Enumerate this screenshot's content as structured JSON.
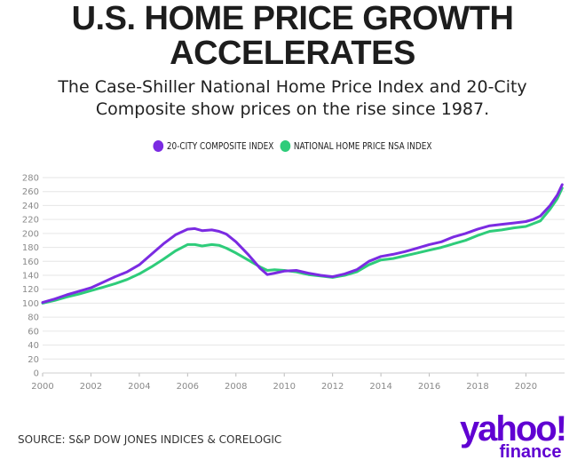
{
  "title_lines": [
    "U.S. HOME PRICE GROWTH",
    "ACCELERATES"
  ],
  "subtitle_lines": [
    "The Case-Shiller National Home Price Index and 20-City",
    "Composite show prices on the rise since 1987."
  ],
  "source": "SOURCE: S&P DOW JONES INDICES & CORELOGIC",
  "logo": {
    "main": "yahoo!",
    "sub": "finance"
  },
  "colors": {
    "composite20": "#7b2be2",
    "national": "#2ecc7a",
    "logo": "#6001d2",
    "grid": "#e6e6e6"
  },
  "chart_data": {
    "type": "line",
    "title": "U.S. HOME PRICE GROWTH ACCELERATES",
    "xlabel": "",
    "ylabel": "",
    "xlim": [
      2000,
      2021.6
    ],
    "ylim": [
      0,
      280
    ],
    "x_ticks": [
      2000,
      2002,
      2004,
      2006,
      2008,
      2010,
      2012,
      2014,
      2016,
      2018,
      2020
    ],
    "y_ticks": [
      0,
      20,
      40,
      60,
      80,
      100,
      120,
      140,
      160,
      180,
      200,
      220,
      240,
      260,
      280
    ],
    "grid": true,
    "legend_position": "top-center",
    "series": [
      {
        "name": "20-CITY COMPOSITE INDEX",
        "color": "#7b2be2",
        "x": [
          2000,
          2000.5,
          2001,
          2001.5,
          2002,
          2002.5,
          2003,
          2003.5,
          2004,
          2004.5,
          2005,
          2005.5,
          2006,
          2006.3,
          2006.6,
          2007,
          2007.3,
          2007.6,
          2008,
          2008.5,
          2009,
          2009.3,
          2009.6,
          2010,
          2010.5,
          2011,
          2011.5,
          2012,
          2012.5,
          2013,
          2013.5,
          2014,
          2014.5,
          2015,
          2015.5,
          2016,
          2016.5,
          2017,
          2017.5,
          2018,
          2018.5,
          2019,
          2019.5,
          2020,
          2020.3,
          2020.6,
          2021,
          2021.3,
          2021.5
        ],
        "values": [
          101,
          106,
          112,
          117,
          122,
          130,
          138,
          145,
          155,
          170,
          185,
          198,
          206,
          207,
          204,
          205,
          203,
          199,
          188,
          170,
          150,
          141,
          143,
          146,
          147,
          143,
          140,
          138,
          142,
          148,
          160,
          167,
          170,
          174,
          179,
          184,
          188,
          195,
          200,
          206,
          211,
          213,
          215,
          217,
          220,
          225,
          240,
          255,
          270
        ]
      },
      {
        "name": "NATIONAL HOME PRICE NSA INDEX",
        "color": "#2ecc7a",
        "x": [
          2000,
          2000.5,
          2001,
          2001.5,
          2002,
          2002.5,
          2003,
          2003.5,
          2004,
          2004.5,
          2005,
          2005.5,
          2006,
          2006.3,
          2006.6,
          2007,
          2007.3,
          2007.6,
          2008,
          2008.5,
          2009,
          2009.3,
          2009.6,
          2010,
          2010.5,
          2011,
          2011.5,
          2012,
          2012.5,
          2013,
          2013.5,
          2014,
          2014.5,
          2015,
          2015.5,
          2016,
          2016.5,
          2017,
          2017.5,
          2018,
          2018.5,
          2019,
          2019.5,
          2020,
          2020.3,
          2020.6,
          2021,
          2021.3,
          2021.5
        ],
        "values": [
          100,
          104,
          109,
          113,
          118,
          123,
          128,
          134,
          142,
          152,
          163,
          175,
          184,
          184,
          182,
          184,
          183,
          179,
          172,
          162,
          152,
          147,
          148,
          147,
          145,
          141,
          139,
          137,
          140,
          145,
          155,
          162,
          164,
          168,
          172,
          176,
          180,
          185,
          190,
          197,
          203,
          205,
          208,
          210,
          214,
          218,
          235,
          250,
          265
        ]
      }
    ]
  }
}
